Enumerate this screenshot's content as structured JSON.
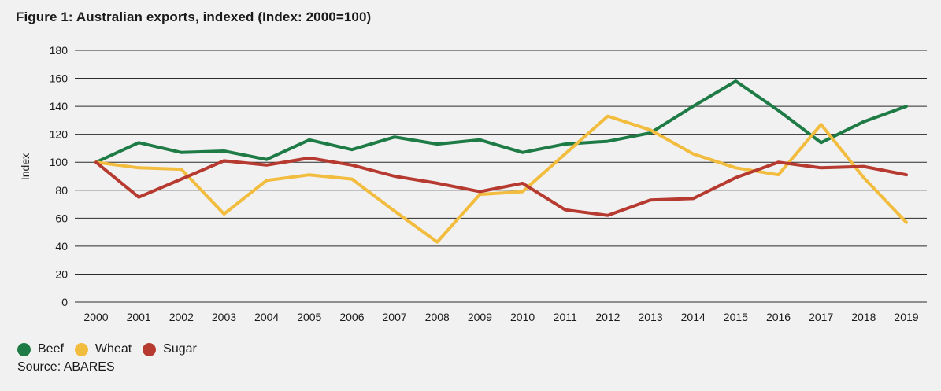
{
  "title": "Figure 1: Australian exports, indexed (Index: 2000=100)",
  "source": "Source: ABARES",
  "chart_data": {
    "type": "line",
    "title": "Figure 1: Australian exports, indexed (Index: 2000=100)",
    "xlabel": "",
    "ylabel": "Index",
    "ylim": [
      0,
      180
    ],
    "yticks": [
      0,
      20,
      40,
      60,
      80,
      100,
      120,
      140,
      160,
      180
    ],
    "grid": true,
    "legend_position": "bottom-left",
    "categories": [
      "2000",
      "2001",
      "2002",
      "2003",
      "2004",
      "2005",
      "2006",
      "2007",
      "2008",
      "2009",
      "2010",
      "2011",
      "2012",
      "2013",
      "2014",
      "2015",
      "2016",
      "2017",
      "2018",
      "2019"
    ],
    "series": [
      {
        "name": "Beef",
        "color": "#1e7b45",
        "values": [
          100,
          114,
          107,
          108,
          102,
          116,
          109,
          118,
          113,
          116,
          107,
          113,
          115,
          121,
          140,
          158,
          137,
          114,
          129,
          140
        ]
      },
      {
        "name": "Wheat",
        "color": "#f2bd3e",
        "values": [
          100,
          96,
          95,
          63,
          87,
          91,
          88,
          65,
          43,
          77,
          79,
          106,
          133,
          123,
          106,
          96,
          91,
          127,
          89,
          57
        ]
      },
      {
        "name": "Sugar",
        "color": "#b63a2f",
        "values": [
          100,
          75,
          88,
          101,
          98,
          103,
          98,
          90,
          85,
          79,
          85,
          66,
          62,
          73,
          74,
          89,
          100,
          96,
          97,
          91
        ]
      }
    ]
  }
}
